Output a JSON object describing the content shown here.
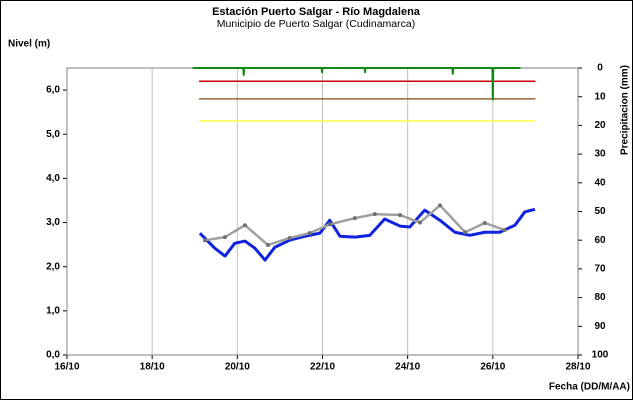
{
  "chart_data": {
    "type": "line",
    "title": "Estación Puerto Salgar - Río Magdalena",
    "subtitle": "Municipio de Puerto Salgar (Cudinamarca)",
    "y_label": "Nivel (m)",
    "y2_label": "Precipitacion (mm)",
    "x_label": "Fecha (DD/M/AA)",
    "xlim": [
      16,
      28
    ],
    "xticks": [
      {
        "value": 16,
        "label": "16/10"
      },
      {
        "value": 18,
        "label": "18/10"
      },
      {
        "value": 20,
        "label": "20/10"
      },
      {
        "value": 22,
        "label": "22/10"
      },
      {
        "value": 24,
        "label": "24/10"
      },
      {
        "value": 26,
        "label": "26/10"
      },
      {
        "value": 28,
        "label": "28/10"
      }
    ],
    "ylim": [
      0,
      6.5
    ],
    "yticks": [
      {
        "value": 0,
        "label": "0,0"
      },
      {
        "value": 1,
        "label": "1,0"
      },
      {
        "value": 2,
        "label": "2,0"
      },
      {
        "value": 3,
        "label": "3,0"
      },
      {
        "value": 4,
        "label": "4,0"
      },
      {
        "value": 5,
        "label": "5,0"
      },
      {
        "value": 6,
        "label": "6,0"
      }
    ],
    "y2lim": [
      0,
      100
    ],
    "y2_inverted": true,
    "y2ticks": [
      0,
      10,
      20,
      30,
      40,
      50,
      60,
      70,
      80,
      90,
      100
    ],
    "grid": "x",
    "reference_lines": [
      {
        "value": 6.2,
        "color": "#cc0000",
        "x": [
          19.1,
          27.0
        ]
      },
      {
        "value": 5.8,
        "color": "#996633",
        "x": [
          19.1,
          27.0
        ]
      },
      {
        "value": 5.3,
        "color": "#ffff44",
        "x": [
          19.1,
          27.0
        ]
      }
    ],
    "series": [
      {
        "color": "#1122dd",
        "width": 3,
        "markers": false,
        "x": [
          19.12,
          19.47,
          19.71,
          19.94,
          20.18,
          20.41,
          20.65,
          20.88,
          21.23,
          21.59,
          21.94,
          22.17,
          22.41,
          22.76,
          23.11,
          23.46,
          23.82,
          24.05,
          24.4,
          24.76,
          25.11,
          25.46,
          25.81,
          26.16,
          26.52,
          26.75,
          26.99
        ],
        "values": [
          2.76,
          2.42,
          2.24,
          2.53,
          2.58,
          2.42,
          2.15,
          2.44,
          2.6,
          2.69,
          2.76,
          3.05,
          2.69,
          2.67,
          2.71,
          3.08,
          2.92,
          2.9,
          3.28,
          3.05,
          2.78,
          2.71,
          2.78,
          2.78,
          2.94,
          3.24,
          3.3
        ]
      },
      {
        "color": "#a0a0a0",
        "width": 2.5,
        "markers": true,
        "x": [
          19.24,
          19.71,
          20.18,
          20.72,
          21.23,
          21.7,
          22.17,
          22.76,
          23.23,
          23.82,
          24.29,
          24.76,
          25.35,
          25.81,
          26.28
        ],
        "values": [
          2.6,
          2.67,
          2.94,
          2.49,
          2.65,
          2.76,
          2.96,
          3.1,
          3.19,
          3.17,
          3.0,
          3.39,
          2.78,
          2.99,
          2.83
        ]
      },
      {
        "color": "#118811",
        "width": 2,
        "markers": false,
        "axis": "y2",
        "x": [
          18.95,
          20.14,
          20.15,
          20.16,
          21.98,
          21.99,
          22.0,
          22.99,
          23.0,
          23.01,
          25.05,
          25.06,
          25.07,
          25.99,
          26.0,
          26.01,
          26.65
        ],
        "values": [
          0,
          0,
          2.4,
          0,
          0,
          1.5,
          0,
          0,
          1.5,
          0,
          0,
          2,
          0,
          0,
          11,
          0,
          0
        ]
      }
    ]
  }
}
